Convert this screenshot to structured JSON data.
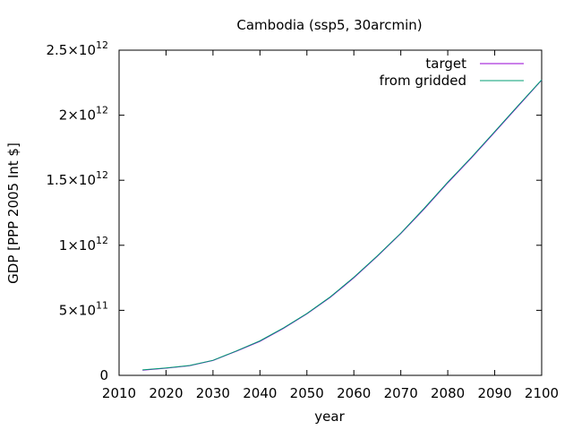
{
  "chart_data": {
    "type": "line",
    "title": "Cambodia (ssp5, 30arcmin)",
    "xlabel": "year",
    "ylabel": "GDP [PPP 2005 Int $]",
    "xlim": [
      2010,
      2100
    ],
    "ylim": [
      0,
      2500000000000
    ],
    "x_ticks": [
      2010,
      2020,
      2030,
      2040,
      2050,
      2060,
      2070,
      2080,
      2090,
      2100
    ],
    "y_ticks": [
      {
        "value": 0,
        "mantissa": "0",
        "exponent": ""
      },
      {
        "value": 500000000000,
        "mantissa": "5×10",
        "exponent": "11"
      },
      {
        "value": 1000000000000,
        "mantissa": "1×10",
        "exponent": "12"
      },
      {
        "value": 1500000000000,
        "mantissa": "1.5×10",
        "exponent": "12"
      },
      {
        "value": 2000000000000,
        "mantissa": "2×10",
        "exponent": "12"
      },
      {
        "value": 2500000000000,
        "mantissa": "2.5×10",
        "exponent": "12"
      }
    ],
    "grid": false,
    "legend_position": "top-right",
    "series": [
      {
        "name": "target",
        "color": "#9400d3",
        "x": [
          2015,
          2020,
          2025,
          2030,
          2035,
          2040,
          2045,
          2050,
          2055,
          2060,
          2065,
          2070,
          2075,
          2080,
          2085,
          2090,
          2095,
          2100
        ],
        "y": [
          40000000000.0,
          55000000000.0,
          74000000000.0,
          114000000000.0,
          186000000000.0,
          262000000000.0,
          361000000000.0,
          473000000000.0,
          600000000000.0,
          750000000000.0,
          915000000000.0,
          1090000000000.0,
          1280000000000.0,
          1480000000000.0,
          1670000000000.0,
          1870000000000.0,
          2070000000000.0,
          2270000000000.0
        ]
      },
      {
        "name": "from gridded",
        "color": "#009e73",
        "x": [
          2015,
          2020,
          2025,
          2030,
          2035,
          2040,
          2045,
          2050,
          2055,
          2060,
          2065,
          2070,
          2075,
          2080,
          2085,
          2090,
          2095,
          2100
        ],
        "y": [
          42000000000.0,
          57000000000.0,
          76000000000.0,
          116000000000.0,
          188000000000.0,
          265000000000.0,
          364000000000.0,
          476000000000.0,
          604000000000.0,
          754000000000.0,
          919000000000.0,
          1094000000000.0,
          1285000000000.0,
          1485000000000.0,
          1675000000000.0,
          1875000000000.0,
          2075000000000.0,
          2272000000000.0
        ]
      }
    ]
  }
}
